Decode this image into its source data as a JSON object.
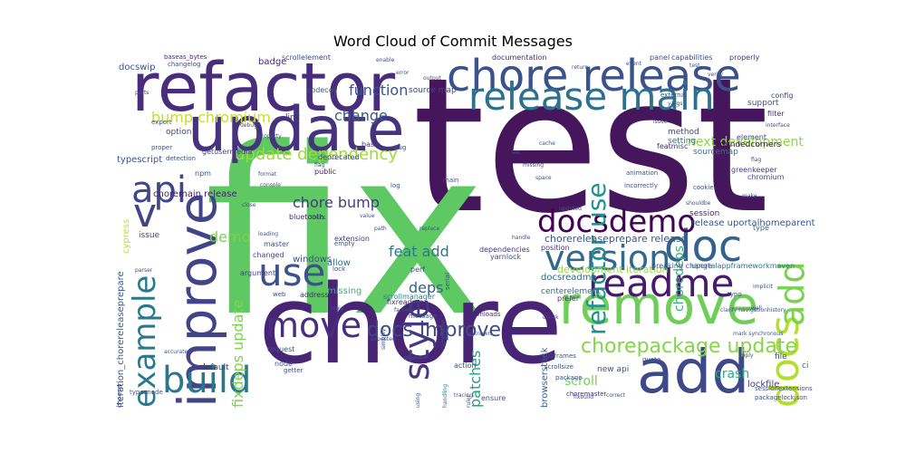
{
  "chart_data": {
    "type": "wordcloud",
    "title": "Word Cloud of Commit Messages",
    "words": [
      {
        "text": "test",
        "color": "#46165c"
      },
      {
        "text": "fix",
        "color": "#5ec962"
      },
      {
        "text": "chore",
        "color": "#482475"
      },
      {
        "text": "refactor",
        "color": "#472d7b"
      },
      {
        "text": "chore release",
        "color": "#3b528b"
      },
      {
        "text": "update",
        "color": "#46337e"
      },
      {
        "text": "release main",
        "color": "#2c728e"
      },
      {
        "text": "remove",
        "color": "#6ece58"
      },
      {
        "text": "add",
        "color": "#3e4989"
      },
      {
        "text": "doc",
        "color": "#33638d"
      },
      {
        "text": "docsdemo",
        "color": "#440154"
      },
      {
        "text": "readme",
        "color": "#481a6c"
      },
      {
        "text": "improve",
        "color": "#414487"
      },
      {
        "text": "docs",
        "color": "#b5de2b"
      },
      {
        "text": "add",
        "color": "#7ad151"
      },
      {
        "text": "move",
        "color": "#472f7d"
      },
      {
        "text": "use",
        "color": "#3b528b"
      },
      {
        "text": "build",
        "color": "#2a788e"
      },
      {
        "text": "version",
        "color": "#31688e"
      },
      {
        "text": "style",
        "color": "#453781"
      },
      {
        "text": "example",
        "color": "#2a788e"
      },
      {
        "text": "api",
        "color": "#3f4788"
      },
      {
        "text": "v",
        "color": "#414487"
      },
      {
        "text": "refactor use",
        "color": "#21918c"
      },
      {
        "text": "update dependency",
        "color": "#a0da39"
      },
      {
        "text": "bump chromium",
        "color": "#c8e020"
      },
      {
        "text": "chorepackage update",
        "color": "#86d549"
      },
      {
        "text": "docs improve",
        "color": "#3e4a89"
      },
      {
        "text": "chore bump",
        "color": "#443a83"
      },
      {
        "text": "fixdeps update",
        "color": "#7fd34e"
      },
      {
        "text": "feat add",
        "color": "#2a788e"
      },
      {
        "text": "function",
        "color": "#3b528b"
      },
      {
        "text": "change",
        "color": "#38598c"
      },
      {
        "text": "deps",
        "color": "#32658e"
      },
      {
        "text": "patches",
        "color": "#1f9e89"
      },
      {
        "text": "demo",
        "color": "#7ad151"
      },
      {
        "text": "next development",
        "color": "#8fd744"
      },
      {
        "text": "choredeps",
        "color": "#2fb47c"
      },
      {
        "text": "crash",
        "color": "#29af7f"
      },
      {
        "text": "scroll",
        "color": "#77d153"
      },
      {
        "text": "lockfile",
        "color": "#433e85"
      },
      {
        "text": "development iteration",
        "color": "#9bd93c"
      },
      {
        "text": "chorereleaseprepare release",
        "color": "#3a548c"
      },
      {
        "text": "choremain release",
        "color": "#482071"
      },
      {
        "text": "iteration_chorereleaseprepare",
        "color": "#38598c"
      },
      {
        "text": "browserstack",
        "color": "#34608d"
      },
      {
        "text": "docsreadme",
        "color": "#31688e"
      },
      {
        "text": "centerelement",
        "color": "#2d708e"
      },
      {
        "text": "release uportalhomeparent",
        "color": "#39558c"
      },
      {
        "text": "uportalappframeworkmaven",
        "color": "#2a778e"
      },
      {
        "text": "breaking change",
        "color": "#3b528b"
      },
      {
        "text": "scrollmanager",
        "color": "#25848e"
      },
      {
        "text": "bluetooth",
        "color": "#482878"
      },
      {
        "text": "windows",
        "color": "#3b528b"
      },
      {
        "text": "extension",
        "color": "#453781"
      },
      {
        "text": "missing",
        "color": "#34b679"
      },
      {
        "text": "address",
        "color": "#482878"
      },
      {
        "text": "allow",
        "color": "#2c728e"
      },
      {
        "text": "dependencies",
        "color": "#453781"
      },
      {
        "text": "typescript",
        "color": "#3b528b"
      },
      {
        "text": "cypress",
        "color": "#c2df23"
      },
      {
        "text": "option",
        "color": "#3e4c8a"
      },
      {
        "text": "docswip",
        "color": "#3b528b"
      },
      {
        "text": "badge",
        "color": "#472c7a"
      },
      {
        "text": "scrollelement",
        "color": "#3f4889"
      },
      {
        "text": "codecov",
        "color": "#39568c"
      },
      {
        "text": "source map",
        "color": "#3e4989"
      },
      {
        "text": "link",
        "color": "#46327e"
      },
      {
        "text": "basic",
        "color": "#453781"
      },
      {
        "text": "public",
        "color": "#48186a"
      },
      {
        "text": "method",
        "color": "#3e4989"
      },
      {
        "text": "element",
        "color": "#404688"
      },
      {
        "text": "setting",
        "color": "#2a788e"
      },
      {
        "text": "featmisc",
        "color": "#46327e"
      },
      {
        "text": "roundedcorners",
        "color": "#440154"
      },
      {
        "text": "sourcemap",
        "color": "#2a788e"
      },
      {
        "text": "greenkeeper",
        "color": "#433e85"
      },
      {
        "text": "chromium",
        "color": "#3b528b"
      },
      {
        "text": "session",
        "color": "#482475"
      },
      {
        "text": "type",
        "color": "#2d708e"
      },
      {
        "text": "support",
        "color": "#3b528b"
      },
      {
        "text": "config",
        "color": "#404688"
      },
      {
        "text": "filter",
        "color": "#46327e"
      },
      {
        "text": "capabilities",
        "color": "#3e4a89"
      },
      {
        "text": "properly",
        "color": "#46327e"
      },
      {
        "text": "panel",
        "color": "#3b528b"
      },
      {
        "text": "documentation",
        "color": "#472c7a"
      },
      {
        "text": "changelog",
        "color": "#3b528b"
      },
      {
        "text": "baseas_bytes",
        "color": "#482878"
      },
      {
        "text": "issue",
        "color": "#3f4788"
      },
      {
        "text": "master",
        "color": "#3b528b"
      },
      {
        "text": "getusermedia",
        "color": "#3e4989"
      },
      {
        "text": "npm",
        "color": "#3b528b"
      },
      {
        "text": "deprecated",
        "color": "#3e4989"
      },
      {
        "text": "position",
        "color": "#46327e"
      },
      {
        "text": "yarnlock",
        "color": "#3b528b"
      },
      {
        "text": "perf",
        "color": "#3b528b"
      },
      {
        "text": "prefer",
        "color": "#46327e"
      },
      {
        "text": "argument",
        "color": "#433e85"
      },
      {
        "text": "changed",
        "color": "#3e4989"
      },
      {
        "text": "loading",
        "color": "#3b528b"
      },
      {
        "text": "empty",
        "color": "#3b528b"
      },
      {
        "text": "lock",
        "color": "#3e4989"
      },
      {
        "text": "web",
        "color": "#3b528b"
      },
      {
        "text": "fixreadme",
        "color": "#472c7a"
      },
      {
        "text": "downloads",
        "color": "#482878"
      },
      {
        "text": "check",
        "color": "#433e85"
      },
      {
        "text": "file",
        "color": "#3e4989"
      },
      {
        "text": "ci",
        "color": "#2a788e"
      },
      {
        "text": "new api",
        "color": "#3b528b"
      },
      {
        "text": "default",
        "color": "#453781"
      },
      {
        "text": "node",
        "color": "#3b528b"
      },
      {
        "text": "request",
        "color": "#3b528b"
      },
      {
        "text": "getter",
        "color": "#3b528b"
      },
      {
        "text": "typesnode",
        "color": "#3b528b"
      },
      {
        "text": "chooser",
        "color": "#3b528b"
      },
      {
        "text": "action",
        "color": "#3b528b"
      },
      {
        "text": "ensure",
        "color": "#3b528b"
      },
      {
        "text": "handling",
        "color": "#2a788e"
      },
      {
        "text": "package",
        "color": "#3b528b"
      },
      {
        "text": "subframes",
        "color": "#3b528b"
      },
      {
        "text": "scrollsize",
        "color": "#3b528b"
      },
      {
        "text": "sessionextensions",
        "color": "#3b528b"
      },
      {
        "text": "packagelockjson",
        "color": "#3b528b"
      },
      {
        "text": "choremaster",
        "color": "#46327e"
      },
      {
        "text": "correct",
        "color": "#3b528b"
      },
      {
        "text": "message",
        "color": "#3b528b"
      },
      {
        "text": "expected",
        "color": "#3b528b"
      },
      {
        "text": "unknown",
        "color": "#3b528b"
      },
      {
        "text": "space",
        "color": "#3b528b"
      },
      {
        "text": "serial",
        "color": "#3b528b"
      },
      {
        "text": "main",
        "color": "#3b528b"
      },
      {
        "text": "animation",
        "color": "#3b528b"
      },
      {
        "text": "incorrectly",
        "color": "#3b528b"
      },
      {
        "text": "cookie",
        "color": "#3b528b"
      },
      {
        "text": "external",
        "color": "#3b528b"
      },
      {
        "text": "export",
        "color": "#3b528b"
      },
      {
        "text": "proper",
        "color": "#3b528b"
      },
      {
        "text": "detection",
        "color": "#3b528b"
      },
      {
        "text": "replace",
        "color": "#3b528b"
      },
      {
        "text": "clarify navigationhistory",
        "color": "#3b528b"
      },
      {
        "text": "mark synchronous",
        "color": "#3b528b"
      },
      {
        "text": "parser",
        "color": "#3b528b"
      },
      {
        "text": "logic",
        "color": "#3b528b"
      },
      {
        "text": "flag",
        "color": "#3b528b"
      },
      {
        "text": "close",
        "color": "#3b528b"
      },
      {
        "text": "log",
        "color": "#3b528b"
      },
      {
        "text": "bug",
        "color": "#3b528b"
      },
      {
        "text": "simplify",
        "color": "#3b528b"
      },
      {
        "text": "limits",
        "color": "#3b528b"
      },
      {
        "text": "completion",
        "color": "#3b528b"
      },
      {
        "text": "parts",
        "color": "#3b528b"
      },
      {
        "text": "shouldbe",
        "color": "#3b528b"
      },
      {
        "text": "make",
        "color": "#3b528b"
      },
      {
        "text": "faccess",
        "color": "#3b528b"
      },
      {
        "text": "accurate",
        "color": "#3b528b"
      },
      {
        "text": "ruler",
        "color": "#3b528b"
      },
      {
        "text": "using",
        "color": "#3b528b"
      },
      {
        "text": "quote",
        "color": "#3b528b"
      },
      {
        "text": "imply",
        "color": "#3b528b"
      },
      {
        "text": "implicit",
        "color": "#3b528b"
      },
      {
        "text": "updated",
        "color": "#3b528b"
      },
      {
        "text": "tracing",
        "color": "#3b528b"
      },
      {
        "text": "well",
        "color": "#3b528b"
      },
      {
        "text": "fixbuild",
        "color": "#3b528b"
      },
      {
        "text": "test",
        "color": "#3b528b"
      },
      {
        "text": "verify",
        "color": "#3b528b"
      },
      {
        "text": "yargs",
        "color": "#3b528b"
      },
      {
        "text": "issue",
        "color": "#3b528b"
      },
      {
        "text": "flag",
        "color": "#3b528b"
      },
      {
        "text": "set",
        "color": "#3b528b"
      },
      {
        "text": "cache",
        "color": "#3b528b"
      },
      {
        "text": "missing",
        "color": "#3b528b"
      },
      {
        "text": "interface",
        "color": "#3b528b"
      },
      {
        "text": "typo",
        "color": "#3b528b"
      },
      {
        "text": "format",
        "color": "#3b528b"
      },
      {
        "text": "console",
        "color": "#3b528b"
      },
      {
        "text": "property",
        "color": "#3b528b"
      },
      {
        "text": "debug",
        "color": "#3b528b"
      },
      {
        "text": "enable",
        "color": "#3b528b"
      },
      {
        "text": "error",
        "color": "#3b528b"
      },
      {
        "text": "output",
        "color": "#3b528b"
      },
      {
        "text": "value",
        "color": "#3b528b"
      },
      {
        "text": "path",
        "color": "#3b528b"
      },
      {
        "text": "handle",
        "color": "#3b528b"
      },
      {
        "text": "return",
        "color": "#3b528b"
      },
      {
        "text": "event",
        "color": "#3b528b"
      }
    ]
  }
}
